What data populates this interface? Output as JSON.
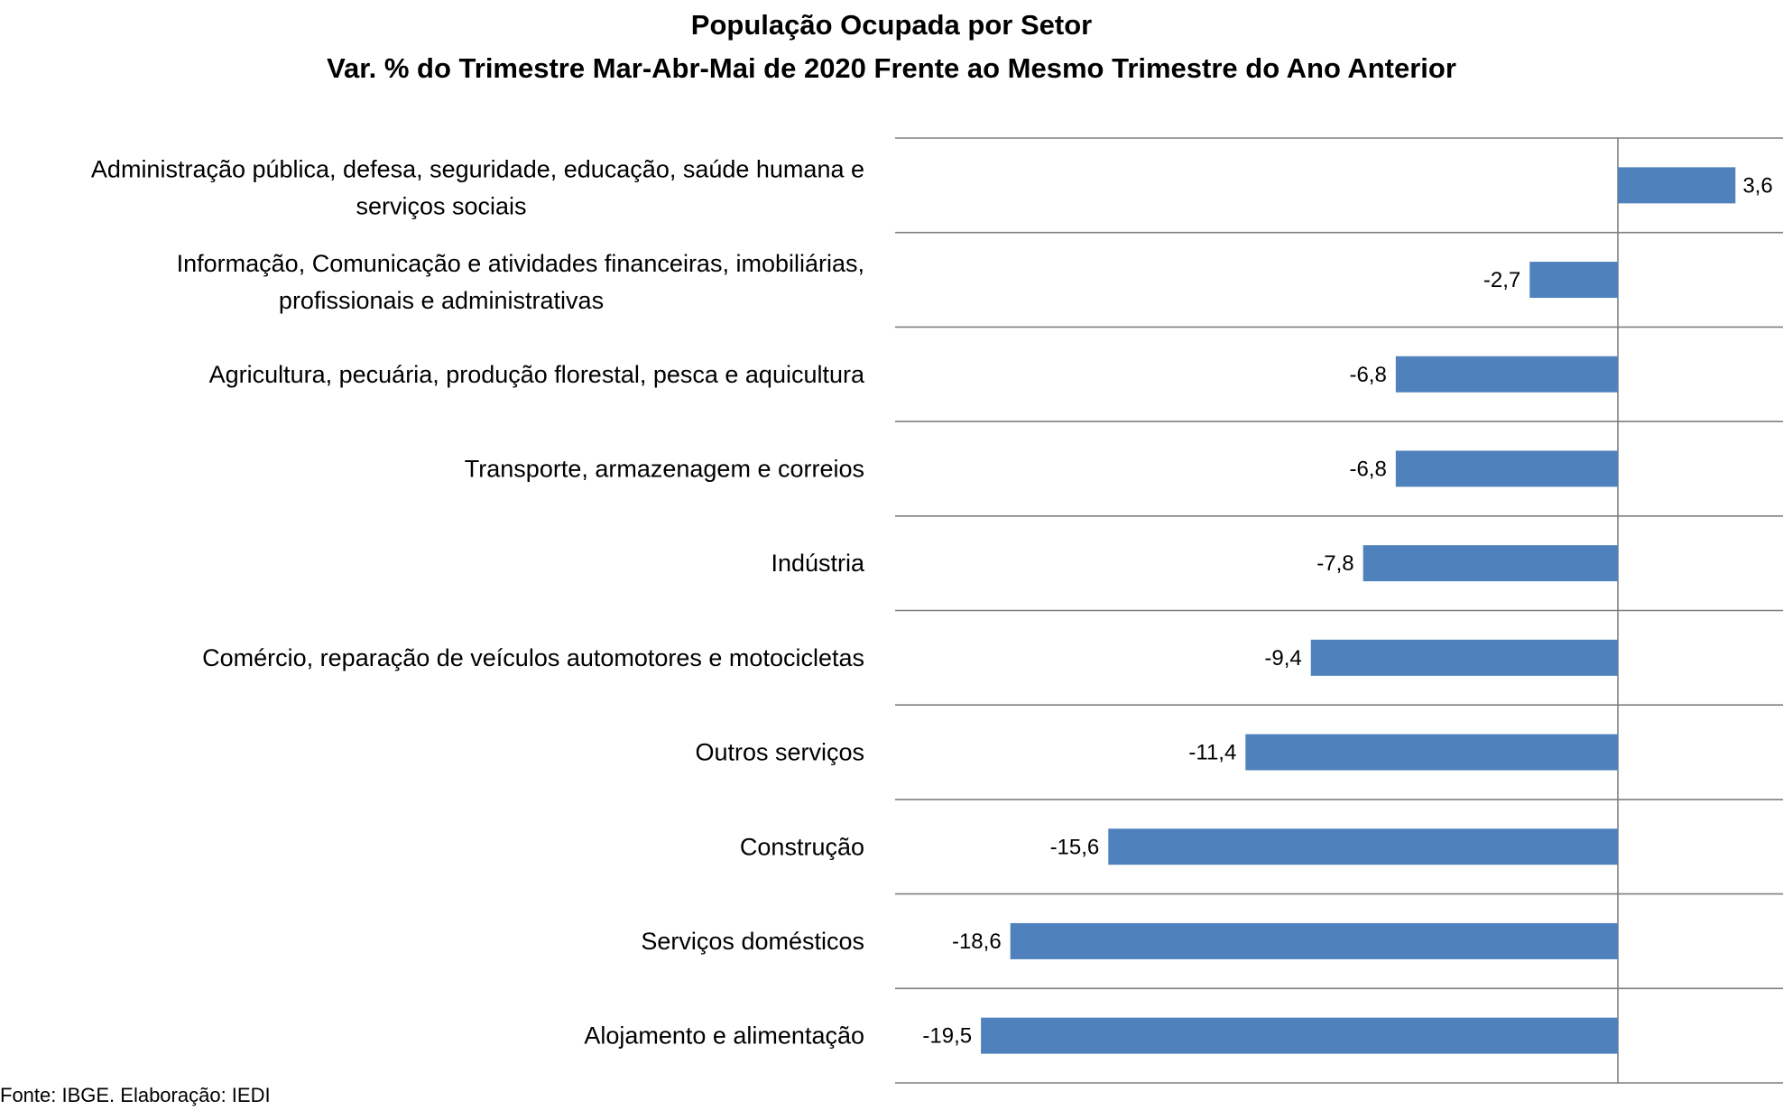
{
  "chart_data": {
    "type": "bar",
    "orientation": "horizontal",
    "title": "População Ocupada por Setor",
    "subtitle": "Var. % do Trimestre Mar-Abr-Mai de 2020 Frente ao Mesmo Trimestre do Ano Anterior",
    "categories": [
      "Administração pública, defesa, seguridade, educação, saúde humana e serviços sociais",
      "Informação, Comunicação e atividades financeiras, imobiliárias, profissionais e administrativas",
      "Agricultura, pecuária, produção florestal, pesca e aquicultura",
      "Transporte, armazenagem e correios",
      "Indústria",
      "Comércio, reparação de veículos automotores e motocicletas",
      "Outros serviços",
      "Construção",
      "Serviços domésticos",
      "Alojamento e alimentação"
    ],
    "category_lines": [
      [
        "Administração pública, defesa, seguridade, educação, saúde humana e",
        "serviços sociais"
      ],
      [
        "Informação, Comunicação e atividades financeiras, imobiliárias,",
        "profissionais e administrativas"
      ],
      [
        "Agricultura, pecuária, produção florestal, pesca e aquicultura"
      ],
      [
        "Transporte, armazenagem e correios"
      ],
      [
        "Indústria"
      ],
      [
        "Comércio, reparação de veículos automotores e motocicletas"
      ],
      [
        "Outros serviços"
      ],
      [
        "Construção"
      ],
      [
        "Serviços domésticos"
      ],
      [
        "Alojamento e alimentação"
      ]
    ],
    "values": [
      3.6,
      -2.7,
      -6.8,
      -6.8,
      -7.8,
      -9.4,
      -11.4,
      -15.6,
      -18.6,
      -19.5
    ],
    "value_labels": [
      "3,6",
      "-2,7",
      "-6,8",
      "-6,8",
      "-7,8",
      "-9,4",
      "-11,4",
      "-15,6",
      "-18,6",
      "-19,5"
    ],
    "xlim": [
      -22,
      5
    ],
    "grid": "horizontal separators between categories",
    "bar_color": "#4F81BD"
  },
  "footer": "Fonte: IBGE. Elaboração: IEDI"
}
